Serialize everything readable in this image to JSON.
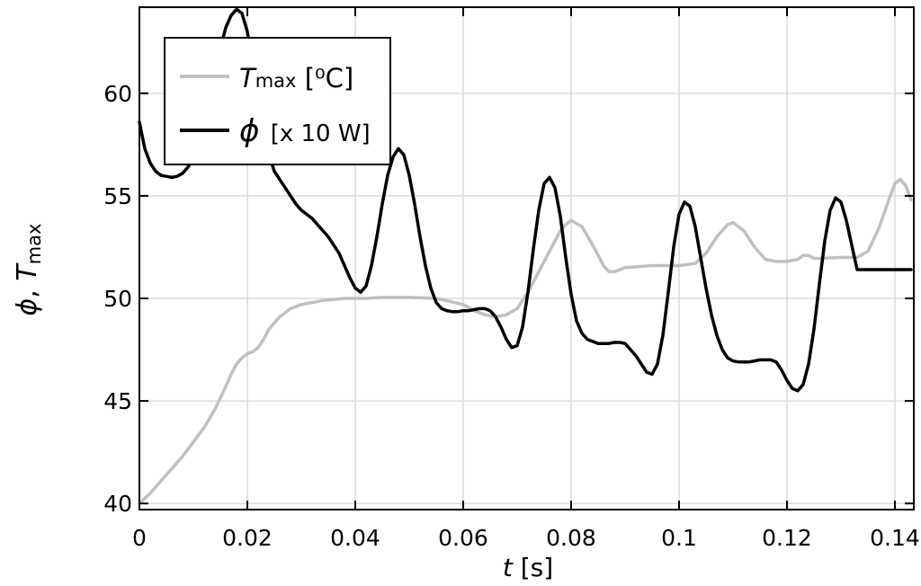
{
  "chart_data": {
    "type": "line",
    "title": "",
    "xlabel": {
      "var": "t",
      "unit": " [s]"
    },
    "ylabel": {
      "phi": "ϕ",
      "sep": ", ",
      "T": "T",
      "sub": "max"
    },
    "xlim": [
      0,
      0.1435
    ],
    "ylim": [
      39.7,
      64.2
    ],
    "xticks": [
      0,
      0.02,
      0.04,
      0.06,
      0.08,
      0.1,
      0.12,
      0.14
    ],
    "xtick_labels": [
      "0",
      "0.02",
      "0.04",
      "0.06",
      "0.08",
      "0.1",
      "0.12",
      "0.14"
    ],
    "yticks": [
      40,
      45,
      50,
      55,
      60
    ],
    "ytick_labels": [
      "40",
      "45",
      "50",
      "55",
      "60"
    ],
    "grid": true,
    "legend_position": "top-left",
    "legend": [
      {
        "id": "T",
        "main": "T",
        "sub": "max",
        "rest": " [⁰C]",
        "color": "#c0c0c0"
      },
      {
        "id": "phi",
        "main": "ϕ",
        "sub": "",
        "rest": " [x 10 W]",
        "color": "#000000"
      }
    ],
    "series": [
      {
        "id": "T",
        "color": "#c0c0c0",
        "x": [
          0,
          0.002,
          0.004,
          0.006,
          0.008,
          0.01,
          0.012,
          0.014,
          0.016,
          0.017,
          0.018,
          0.019,
          0.02,
          0.021,
          0.022,
          0.023,
          0.024,
          0.026,
          0.028,
          0.03,
          0.032,
          0.034,
          0.036,
          0.038,
          0.04,
          0.042,
          0.045,
          0.05,
          0.055,
          0.06,
          0.062,
          0.064,
          0.066,
          0.068,
          0.07,
          0.072,
          0.074,
          0.076,
          0.078,
          0.079,
          0.08,
          0.082,
          0.084,
          0.086,
          0.087,
          0.088,
          0.09,
          0.095,
          0.1,
          0.103,
          0.105,
          0.107,
          0.109,
          0.11,
          0.112,
          0.114,
          0.116,
          0.118,
          0.12,
          0.122,
          0.123,
          0.124,
          0.125,
          0.126,
          0.13,
          0.133,
          0.135,
          0.137,
          0.139,
          0.14,
          0.141,
          0.142,
          0.143
        ],
        "y": [
          40.0,
          40.5,
          41.1,
          41.7,
          42.3,
          43.0,
          43.7,
          44.6,
          45.7,
          46.3,
          46.8,
          47.1,
          47.3,
          47.4,
          47.6,
          48.0,
          48.5,
          49.1,
          49.5,
          49.7,
          49.8,
          49.9,
          49.95,
          50.0,
          50.0,
          50.0,
          50.05,
          50.05,
          50.0,
          49.7,
          49.4,
          49.2,
          49.1,
          49.2,
          49.5,
          50.3,
          51.3,
          52.3,
          53.3,
          53.6,
          53.8,
          53.5,
          52.6,
          51.6,
          51.3,
          51.3,
          51.5,
          51.6,
          51.6,
          51.7,
          52.2,
          53.0,
          53.6,
          53.7,
          53.3,
          52.5,
          51.9,
          51.8,
          51.8,
          51.9,
          52.1,
          52.1,
          51.95,
          51.95,
          52.0,
          52.0,
          52.3,
          53.4,
          54.9,
          55.6,
          55.8,
          55.5,
          54.8
        ]
      },
      {
        "id": "phi",
        "color": "#000000",
        "x": [
          0,
          0.001,
          0.002,
          0.003,
          0.004,
          0.005,
          0.006,
          0.007,
          0.008,
          0.009,
          0.01,
          0.011,
          0.012,
          0.013,
          0.014,
          0.015,
          0.016,
          0.017,
          0.018,
          0.019,
          0.02,
          0.021,
          0.022,
          0.023,
          0.024,
          0.025,
          0.026,
          0.027,
          0.028,
          0.029,
          0.03,
          0.031,
          0.032,
          0.033,
          0.034,
          0.035,
          0.036,
          0.037,
          0.038,
          0.039,
          0.04,
          0.041,
          0.042,
          0.043,
          0.044,
          0.045,
          0.046,
          0.047,
          0.048,
          0.049,
          0.05,
          0.051,
          0.052,
          0.053,
          0.054,
          0.055,
          0.056,
          0.057,
          0.058,
          0.059,
          0.06,
          0.061,
          0.062,
          0.063,
          0.064,
          0.065,
          0.066,
          0.067,
          0.068,
          0.069,
          0.07,
          0.071,
          0.072,
          0.073,
          0.074,
          0.075,
          0.076,
          0.077,
          0.078,
          0.079,
          0.08,
          0.081,
          0.082,
          0.083,
          0.084,
          0.085,
          0.086,
          0.087,
          0.088,
          0.089,
          0.09,
          0.091,
          0.092,
          0.093,
          0.094,
          0.095,
          0.096,
          0.097,
          0.098,
          0.099,
          0.1,
          0.101,
          0.102,
          0.103,
          0.104,
          0.105,
          0.106,
          0.107,
          0.108,
          0.109,
          0.11,
          0.111,
          0.112,
          0.113,
          0.114,
          0.115,
          0.116,
          0.117,
          0.118,
          0.119,
          0.12,
          0.121,
          0.122,
          0.123,
          0.124,
          0.125,
          0.126,
          0.127,
          0.128,
          0.129,
          0.13,
          0.131,
          0.132,
          0.133,
          0.134,
          0.135,
          0.136,
          0.137,
          0.138,
          0.139,
          0.14,
          0.141,
          0.142,
          0.143
        ],
        "y": [
          58.6,
          57.3,
          56.6,
          56.2,
          56.0,
          55.95,
          55.9,
          55.95,
          56.1,
          56.4,
          56.9,
          57.6,
          58.6,
          59.8,
          61.0,
          62.2,
          63.2,
          63.8,
          64.1,
          63.9,
          63.0,
          61.5,
          59.9,
          58.3,
          57.0,
          56.2,
          55.8,
          55.4,
          55.0,
          54.6,
          54.3,
          54.1,
          53.9,
          53.6,
          53.3,
          53.0,
          52.6,
          52.2,
          51.6,
          51.0,
          50.5,
          50.3,
          50.6,
          51.6,
          53.0,
          54.6,
          56.0,
          56.9,
          57.3,
          57.0,
          56.0,
          54.6,
          53.0,
          51.6,
          50.5,
          49.8,
          49.5,
          49.4,
          49.35,
          49.35,
          49.4,
          49.4,
          49.45,
          49.5,
          49.5,
          49.4,
          49.1,
          48.6,
          48.0,
          47.6,
          47.7,
          48.6,
          50.3,
          52.4,
          54.3,
          55.6,
          55.9,
          55.4,
          54.0,
          52.0,
          50.2,
          48.9,
          48.3,
          48.0,
          47.9,
          47.8,
          47.8,
          47.8,
          47.85,
          47.85,
          47.8,
          47.5,
          47.2,
          46.8,
          46.4,
          46.3,
          46.8,
          48.2,
          50.3,
          52.5,
          54.1,
          54.7,
          54.5,
          53.5,
          52.0,
          50.5,
          49.2,
          48.2,
          47.5,
          47.1,
          46.95,
          46.9,
          46.9,
          46.9,
          46.95,
          47.0,
          47.0,
          47.0,
          46.9,
          46.5,
          46.0,
          45.6,
          45.5,
          45.8,
          46.8,
          48.5,
          50.7,
          52.8,
          54.3,
          54.9,
          54.7,
          53.8,
          52.6,
          51.4,
          51.4,
          51.4,
          51.4,
          51.4,
          51.4,
          51.4,
          51.4,
          51.4,
          51.4,
          51.4
        ]
      }
    ]
  }
}
